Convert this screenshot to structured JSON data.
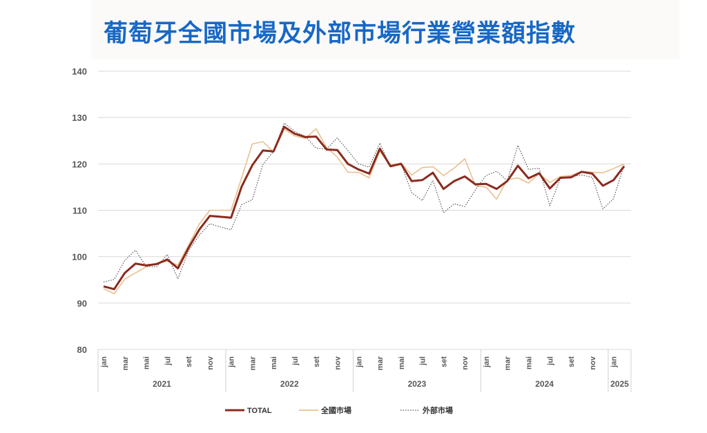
{
  "title": "葡萄牙全國市場及外部市場行業營業額指數",
  "chart_data": {
    "type": "line",
    "ylim": [
      80,
      140
    ],
    "yticks": [
      80,
      90,
      100,
      110,
      120,
      130,
      140
    ],
    "grid": true,
    "legend": "bottom",
    "x": [
      "jan",
      "fev",
      "mar",
      "abr",
      "mai",
      "jun",
      "jul",
      "ago",
      "set",
      "out",
      "nov",
      "dez",
      "jan",
      "fev",
      "mar",
      "abr",
      "mai",
      "jun",
      "jul",
      "ago",
      "set",
      "out",
      "nov",
      "dez",
      "jan",
      "fev",
      "mar",
      "abr",
      "mai",
      "jun",
      "jul",
      "ago",
      "set",
      "out",
      "nov",
      "dez",
      "jan",
      "fev",
      "mar",
      "abr",
      "mai",
      "jun",
      "jul",
      "ago",
      "set",
      "out",
      "nov",
      "dez",
      "jan",
      "fev"
    ],
    "tick_labels": [
      "jan",
      "mar",
      "mai",
      "jul",
      "set",
      "nov",
      "jan",
      "mar",
      "mai",
      "jul",
      "set",
      "nov",
      "jan",
      "mar",
      "mai",
      "jul",
      "set",
      "nov",
      "jan",
      "mar",
      "mai",
      "jul",
      "set",
      "nov",
      "jan"
    ],
    "years": [
      {
        "label": "2021",
        "start": 0,
        "end": 11
      },
      {
        "label": "2022",
        "start": 12,
        "end": 23
      },
      {
        "label": "2023",
        "start": 24,
        "end": 35
      },
      {
        "label": "2024",
        "start": 36,
        "end": 47
      },
      {
        "label": "2025",
        "start": 48,
        "end": 49
      }
    ],
    "series": [
      {
        "name": "TOTAL",
        "color": "#8b2a1e",
        "style": "solid-thick",
        "values": [
          93.6,
          93.0,
          96.5,
          98.5,
          98.1,
          98.4,
          99.4,
          97.5,
          101.9,
          105.8,
          108.8,
          108.6,
          108.4,
          115.1,
          119.7,
          122.9,
          122.7,
          128.0,
          126.5,
          125.8,
          125.9,
          123.1,
          123.0,
          120.0,
          118.8,
          117.9,
          123.3,
          119.5,
          120.0,
          116.3,
          116.5,
          118.1,
          114.6,
          116.3,
          117.3,
          115.6,
          115.7,
          114.6,
          116.3,
          119.6,
          116.9,
          118.0,
          114.7,
          117.0,
          117.1,
          118.3,
          117.9,
          115.3,
          116.5,
          119.5
        ]
      },
      {
        "name": "全國市場",
        "color": "#e8c08e",
        "style": "solid-thin",
        "values": [
          93.1,
          92.0,
          95.2,
          96.5,
          97.8,
          98.6,
          99.0,
          98.2,
          102.5,
          107.0,
          110.0,
          110.0,
          110.0,
          117.0,
          124.3,
          124.8,
          122.5,
          127.5,
          126.0,
          125.5,
          127.6,
          123.5,
          121.5,
          118.2,
          118.2,
          117.0,
          122.7,
          119.8,
          120.2,
          117.6,
          119.2,
          119.4,
          117.5,
          119.1,
          121.1,
          115.3,
          115.0,
          112.4,
          116.6,
          117.0,
          115.9,
          117.9,
          116.0,
          117.3,
          117.5,
          118.4,
          118.2,
          118.1,
          119.0,
          120.0
        ]
      },
      {
        "name": "外部市場",
        "color": "#555555",
        "style": "dotted",
        "values": [
          94.5,
          95.1,
          99.2,
          101.4,
          97.9,
          97.8,
          100.5,
          95.2,
          101.3,
          104.6,
          107.1,
          106.4,
          105.8,
          111.2,
          112.3,
          119.9,
          122.7,
          128.8,
          127.0,
          125.9,
          123.4,
          123.2,
          125.6,
          122.9,
          120.0,
          119.3,
          124.5,
          119.3,
          120.1,
          113.8,
          112.1,
          116.4,
          109.5,
          111.4,
          110.8,
          114.4,
          117.5,
          118.4,
          116.4,
          124.0,
          118.8,
          119.1,
          111.0,
          116.9,
          117.3,
          117.6,
          117.1,
          110.3,
          112.5,
          119.8
        ]
      }
    ]
  }
}
